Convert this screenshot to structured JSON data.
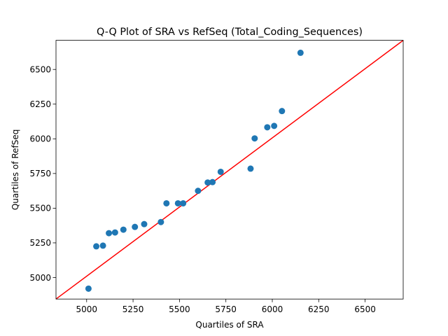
{
  "chart_data": {
    "type": "scatter",
    "title": "Q-Q Plot of SRA vs RefSeq (Total_Coding_Sequences)",
    "xlabel": "Quartiles of SRA",
    "ylabel": "Quartiles of RefSeq",
    "xlim": [
      4835,
      6705
    ],
    "ylim": [
      4845,
      6710
    ],
    "xticks": [
      "5000",
      "5250",
      "5500",
      "5750",
      "6000",
      "6250",
      "6500"
    ],
    "yticks": [
      "5000",
      "5250",
      "5500",
      "5750",
      "6000",
      "6250",
      "6500"
    ],
    "grid": false,
    "legend": "none",
    "point_color": "#1f77b4",
    "reference_line_color": "#ff0000",
    "reference_line": [
      [
        4835,
        4845
      ],
      [
        6705,
        6710
      ]
    ],
    "points": [
      {
        "x": 5010,
        "y": 4920
      },
      {
        "x": 5052,
        "y": 5225
      },
      {
        "x": 5088,
        "y": 5230
      },
      {
        "x": 5120,
        "y": 5320
      },
      {
        "x": 5153,
        "y": 5325
      },
      {
        "x": 5198,
        "y": 5345
      },
      {
        "x": 5260,
        "y": 5365
      },
      {
        "x": 5310,
        "y": 5385
      },
      {
        "x": 5400,
        "y": 5400
      },
      {
        "x": 5430,
        "y": 5535
      },
      {
        "x": 5492,
        "y": 5535
      },
      {
        "x": 5520,
        "y": 5535
      },
      {
        "x": 5600,
        "y": 5625
      },
      {
        "x": 5652,
        "y": 5685
      },
      {
        "x": 5678,
        "y": 5688
      },
      {
        "x": 5722,
        "y": 5762
      },
      {
        "x": 5883,
        "y": 5785
      },
      {
        "x": 5905,
        "y": 6003
      },
      {
        "x": 5973,
        "y": 6083
      },
      {
        "x": 6010,
        "y": 6093
      },
      {
        "x": 6052,
        "y": 6200
      },
      {
        "x": 6152,
        "y": 6620
      }
    ]
  }
}
